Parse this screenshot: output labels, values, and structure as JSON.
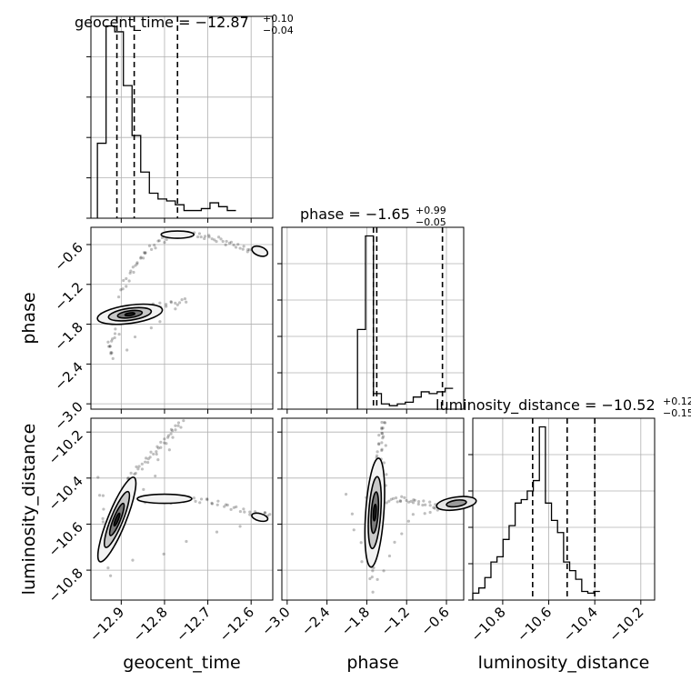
{
  "chart_data": {
    "type": "corner",
    "parameters": [
      "geocent_time",
      "phase",
      "luminosity_distance"
    ],
    "titles": [
      {
        "param": "geocent_time",
        "label": "geocent_time = −12.87",
        "sup": "+0.10",
        "sub": "−0.04"
      },
      {
        "param": "phase",
        "label": "phase = −1.65",
        "sup": "+0.99",
        "sub": "−0.05"
      },
      {
        "param": "luminosity_distance",
        "label": "luminosity_distance = −10.52",
        "sup": "+0.12",
        "sub": "−0.15"
      }
    ],
    "ranges": {
      "geocent_time": [
        -12.97,
        -12.55
      ],
      "phase": [
        -3.08,
        -0.34
      ],
      "luminosity_distance": [
        -10.93,
        -10.14
      ]
    },
    "ticks": {
      "geocent_time": [
        -12.9,
        -12.8,
        -12.7,
        -12.6
      ],
      "phase": [
        -3.0,
        -2.4,
        -1.8,
        -1.2,
        -0.6
      ],
      "luminosity_distance": [
        -10.8,
        -10.6,
        -10.4,
        -10.2
      ]
    },
    "tick_labels": {
      "geocent_time": [
        "−12.9",
        "−12.8",
        "−12.7",
        "−12.6"
      ],
      "phase": [
        "−3.0",
        "−2.4",
        "−1.8",
        "−1.2",
        "−0.6"
      ],
      "luminosity_distance": [
        "−10.8",
        "−10.6",
        "−10.4",
        "−10.2"
      ]
    },
    "quantiles": {
      "geocent_time": [
        -12.91,
        -12.87,
        -12.77
      ],
      "phase": [
        -1.7,
        -1.65,
        -0.66
      ],
      "luminosity_distance": [
        -10.67,
        -10.52,
        -10.4
      ]
    },
    "histograms": {
      "geocent_time": {
        "edges_start": -12.955,
        "bin_width": 0.02,
        "counts": [
          0.39,
          1.0,
          0.97,
          0.69,
          0.43,
          0.24,
          0.13,
          0.1,
          0.09,
          0.07,
          0.04,
          0.04,
          0.05,
          0.08,
          0.06,
          0.04
        ]
      },
      "phase": {
        "edges_start": -1.94,
        "bin_width": 0.12,
        "counts": [
          0.46,
          1.0,
          0.09,
          0.03,
          0.02,
          0.03,
          0.04,
          0.07,
          0.1,
          0.09,
          0.1,
          0.12
        ]
      },
      "luminosity_distance": {
        "edges_start": -10.93,
        "bin_width": 0.0263,
        "counts": [
          0.04,
          0.07,
          0.13,
          0.22,
          0.25,
          0.35,
          0.43,
          0.56,
          0.58,
          0.63,
          0.69,
          1.0,
          0.56,
          0.46,
          0.39,
          0.22,
          0.17,
          0.12,
          0.05,
          0.04,
          0.05
        ]
      }
    },
    "scatter_2d": {
      "phase_vs_geocent_time": [
        [
          -12.95,
          -1.65
        ],
        [
          -12.93,
          -1.7
        ],
        [
          -12.91,
          -1.68
        ],
        [
          -12.89,
          -1.66
        ],
        [
          -12.87,
          -1.6
        ],
        [
          -12.85,
          -1.55
        ],
        [
          -12.82,
          -1.52
        ],
        [
          -12.78,
          -1.49
        ],
        [
          -12.75,
          -1.44
        ],
        [
          -12.92,
          -2.3
        ],
        [
          -12.93,
          -2.1
        ],
        [
          -12.91,
          -1.95
        ],
        [
          -12.9,
          -1.3
        ],
        [
          -12.88,
          -1.05
        ],
        [
          -12.86,
          -0.85
        ],
        [
          -12.84,
          -0.7
        ],
        [
          -12.81,
          -0.55
        ],
        [
          -12.78,
          -0.46
        ],
        [
          -12.75,
          -0.43
        ],
        [
          -12.72,
          -0.46
        ],
        [
          -12.69,
          -0.5
        ],
        [
          -12.66,
          -0.56
        ],
        [
          -12.63,
          -0.63
        ],
        [
          -12.6,
          -0.69
        ],
        [
          -12.57,
          -0.68
        ]
      ],
      "luminosity_distance_vs_geocent_time": [
        [
          -12.94,
          -10.74
        ],
        [
          -12.93,
          -10.68
        ],
        [
          -12.92,
          -10.62
        ],
        [
          -12.91,
          -10.56
        ],
        [
          -12.9,
          -10.5
        ],
        [
          -12.89,
          -10.45
        ],
        [
          -12.88,
          -10.4
        ],
        [
          -12.86,
          -10.36
        ],
        [
          -12.84,
          -10.32
        ],
        [
          -12.82,
          -10.28
        ],
        [
          -12.8,
          -10.24
        ],
        [
          -12.78,
          -10.19
        ],
        [
          -12.76,
          -10.16
        ],
        [
          -12.86,
          -10.5
        ],
        [
          -12.82,
          -10.49
        ],
        [
          -12.78,
          -10.5
        ],
        [
          -12.74,
          -10.49
        ],
        [
          -12.7,
          -10.5
        ],
        [
          -12.66,
          -10.52
        ],
        [
          -12.62,
          -10.54
        ],
        [
          -12.58,
          -10.56
        ],
        [
          -12.56,
          -10.56
        ],
        [
          -12.93,
          -10.8
        ],
        [
          -12.95,
          -10.4
        ],
        [
          -12.92,
          -10.9
        ]
      ],
      "luminosity_distance_vs_phase": [
        [
          -1.72,
          -10.82
        ],
        [
          -1.7,
          -10.74
        ],
        [
          -1.72,
          -10.66
        ],
        [
          -1.73,
          -10.58
        ],
        [
          -1.71,
          -10.5
        ],
        [
          -1.66,
          -10.44
        ],
        [
          -1.64,
          -10.38
        ],
        [
          -1.62,
          -10.32
        ],
        [
          -1.6,
          -10.26
        ],
        [
          -1.58,
          -10.2
        ],
        [
          -1.55,
          -10.15
        ],
        [
          -1.5,
          -10.5
        ],
        [
          -1.3,
          -10.49
        ],
        [
          -1.1,
          -10.5
        ],
        [
          -0.9,
          -10.51
        ],
        [
          -0.7,
          -10.53
        ],
        [
          -0.55,
          -10.53
        ],
        [
          -2.1,
          -10.48
        ],
        [
          -1.72,
          -10.9
        ],
        [
          -1.2,
          -10.58
        ],
        [
          -0.45,
          -10.5
        ]
      ]
    },
    "contour_color": "#000000",
    "grid": true
  }
}
